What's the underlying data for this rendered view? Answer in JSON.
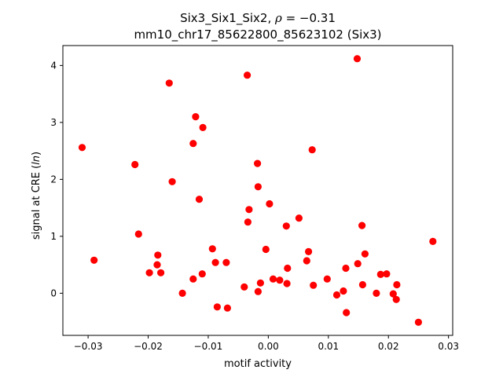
{
  "chart_data": {
    "type": "scatter",
    "title_line1_prefix": "Six3_Six1_Six2, ",
    "title_rho_symbol": "ρ",
    "title_rho_value": " = −0.31",
    "title_line2": "mm10_chr17_85622800_85623102 (Six3)",
    "xlabel": "motif activity",
    "ylabel_prefix": "signal at CRE (",
    "ylabel_italic": "ln",
    "ylabel_suffix": ")",
    "xlim": [
      -0.0342,
      0.0307
    ],
    "ylim": [
      -0.74,
      4.35
    ],
    "xticks": [
      -0.03,
      -0.02,
      -0.01,
      0.0,
      0.01,
      0.02,
      0.03
    ],
    "xtick_labels": [
      "−0.03",
      "−0.02",
      "−0.01",
      "0.00",
      "0.01",
      "0.02",
      "0.03"
    ],
    "yticks": [
      0,
      1,
      2,
      3,
      4
    ],
    "ytick_labels": [
      "0",
      "1",
      "2",
      "3",
      "4"
    ],
    "grid": false,
    "legend": "none",
    "marker_color": "#ff0000",
    "points": [
      {
        "x": -0.031,
        "y": 2.56
      },
      {
        "x": -0.029,
        "y": 0.58
      },
      {
        "x": -0.0222,
        "y": 2.26
      },
      {
        "x": -0.0216,
        "y": 1.04
      },
      {
        "x": -0.0198,
        "y": 0.36
      },
      {
        "x": -0.0184,
        "y": 0.67
      },
      {
        "x": -0.0185,
        "y": 0.5
      },
      {
        "x": -0.0179,
        "y": 0.36
      },
      {
        "x": -0.0165,
        "y": 3.69
      },
      {
        "x": -0.016,
        "y": 1.96
      },
      {
        "x": -0.0143,
        "y": 0.0
      },
      {
        "x": -0.0125,
        "y": 2.63
      },
      {
        "x": -0.0125,
        "y": 0.25
      },
      {
        "x": -0.0121,
        "y": 3.1
      },
      {
        "x": -0.0115,
        "y": 1.65
      },
      {
        "x": -0.0109,
        "y": 2.91
      },
      {
        "x": -0.011,
        "y": 0.34
      },
      {
        "x": -0.0093,
        "y": 0.78
      },
      {
        "x": -0.0088,
        "y": 0.54
      },
      {
        "x": -0.0085,
        "y": -0.24
      },
      {
        "x": -0.007,
        "y": 0.54
      },
      {
        "x": -0.0068,
        "y": -0.26
      },
      {
        "x": -0.004,
        "y": 0.11
      },
      {
        "x": -0.0035,
        "y": 3.83
      },
      {
        "x": -0.0034,
        "y": 1.25
      },
      {
        "x": -0.0032,
        "y": 1.47
      },
      {
        "x": -0.0018,
        "y": 2.28
      },
      {
        "x": -0.0017,
        "y": 1.87
      },
      {
        "x": -0.0017,
        "y": 0.03
      },
      {
        "x": -0.0013,
        "y": 0.18
      },
      {
        "x": -0.0004,
        "y": 0.77
      },
      {
        "x": 0.0002,
        "y": 1.57
      },
      {
        "x": 0.0008,
        "y": 0.25
      },
      {
        "x": 0.0019,
        "y": 0.23
      },
      {
        "x": 0.003,
        "y": 1.18
      },
      {
        "x": 0.0031,
        "y": 0.17
      },
      {
        "x": 0.0032,
        "y": 0.44
      },
      {
        "x": 0.0051,
        "y": 1.32
      },
      {
        "x": 0.0064,
        "y": 0.57
      },
      {
        "x": 0.0067,
        "y": 0.73
      },
      {
        "x": 0.0073,
        "y": 2.52
      },
      {
        "x": 0.0075,
        "y": 0.14
      },
      {
        "x": 0.0098,
        "y": 0.25
      },
      {
        "x": 0.0114,
        "y": -0.03
      },
      {
        "x": 0.0125,
        "y": 0.04
      },
      {
        "x": 0.0129,
        "y": 0.44
      },
      {
        "x": 0.013,
        "y": -0.34
      },
      {
        "x": 0.0148,
        "y": 4.12
      },
      {
        "x": 0.0149,
        "y": 0.52
      },
      {
        "x": 0.0156,
        "y": 1.19
      },
      {
        "x": 0.0157,
        "y": 0.15
      },
      {
        "x": 0.0161,
        "y": 0.69
      },
      {
        "x": 0.018,
        "y": 0.0
      },
      {
        "x": 0.0187,
        "y": 0.33
      },
      {
        "x": 0.0197,
        "y": 0.34
      },
      {
        "x": 0.0208,
        "y": -0.01
      },
      {
        "x": 0.0213,
        "y": -0.11
      },
      {
        "x": 0.0214,
        "y": 0.15
      },
      {
        "x": 0.025,
        "y": -0.51
      },
      {
        "x": 0.0274,
        "y": 0.91
      }
    ]
  }
}
